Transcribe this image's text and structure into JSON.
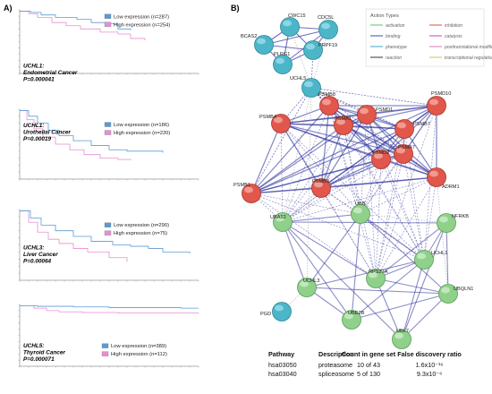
{
  "panel_a": {
    "label": "A)",
    "plots": [
      {
        "gene": "UCHL1:",
        "cancer": "Endometrial Cancer",
        "p": "P=0.000041",
        "legend_low": "Low expression (n=287)",
        "legend_high": "High expression (n=254)"
      },
      {
        "gene": "UCHL1:",
        "cancer": "Urothelial Cancer",
        "p": "P=0.00019",
        "legend_low": "Low expression (n=186)",
        "legend_high": "High expression (n=220)"
      },
      {
        "gene": "UCHL3:",
        "cancer": "Liver Cancer",
        "p": "P=0.00064",
        "legend_low": "Low expression (n=290)",
        "legend_high": "High expression (n=75)"
      },
      {
        "gene": "UCHL5:",
        "cancer": "Thyroid Cancer",
        "p": "P=0.000071",
        "legend_low": "Low expression (n=389)",
        "legend_high": "High expression (n=112)"
      }
    ],
    "colors": {
      "low": "#5b9bd5",
      "high": "#e78fd0"
    }
  },
  "panel_b": {
    "label": "B)",
    "legend": {
      "title": "Action Types",
      "items": [
        "activation",
        "inhibition",
        "binding",
        "catalysis",
        "phenotype",
        "posttranslational modification",
        "reaction",
        "transcriptional regulation"
      ]
    },
    "nodes": [
      {
        "label": "CWC15",
        "group": "teal"
      },
      {
        "label": "CDC5L",
        "group": "teal"
      },
      {
        "label": "BCAS2",
        "group": "teal"
      },
      {
        "label": "PRPF19",
        "group": "teal"
      },
      {
        "label": "PLRG1",
        "group": "teal"
      },
      {
        "label": "UCHL5",
        "group": "teal"
      },
      {
        "label": "PSMB8",
        "group": "red"
      },
      {
        "label": "PSMD1",
        "group": "red"
      },
      {
        "label": "PSMD10",
        "group": "red"
      },
      {
        "label": "PSMB4",
        "group": "red"
      },
      {
        "label": "PSMA1",
        "group": "red"
      },
      {
        "label": "PSMB7",
        "group": "red"
      },
      {
        "label": "PSMA7",
        "group": "red"
      },
      {
        "label": "PSMB1",
        "group": "red"
      },
      {
        "label": "PSMB3",
        "group": "red"
      },
      {
        "label": "PSMD2",
        "group": "red"
      },
      {
        "label": "ADRM1",
        "group": "red"
      },
      {
        "label": "UBA52",
        "group": "green"
      },
      {
        "label": "UBB",
        "group": "green"
      },
      {
        "label": "NFRKB",
        "group": "green"
      },
      {
        "label": "UCHL1",
        "group": "green"
      },
      {
        "label": "UCHL3",
        "group": "green"
      },
      {
        "label": "RPS27A",
        "group": "green"
      },
      {
        "label": "UBQLN1",
        "group": "green"
      },
      {
        "label": "UBE2B",
        "group": "green"
      },
      {
        "label": "UBL7",
        "group": "green"
      },
      {
        "label": "PGD",
        "group": "teal"
      }
    ],
    "table": {
      "headers": [
        "Pathway",
        "Description",
        "Count in gene set",
        "False discovery ratio"
      ],
      "rows": [
        [
          "hsa03050",
          "proteasome",
          "10 of 43",
          "1.6x10⁻¹⁶"
        ],
        [
          "hsa03040",
          "spliceosome",
          "5 of 130",
          "9.3x10⁻⁶"
        ]
      ]
    }
  }
}
